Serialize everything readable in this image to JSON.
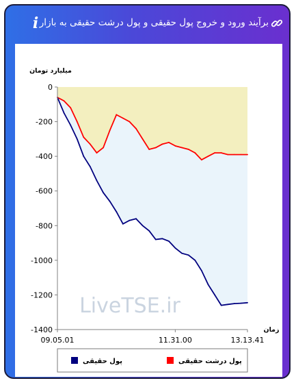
{
  "header": {
    "title": "برآیند ورود و خروج پول حقیقی و پول درشت حقیقی به بازار",
    "link_icon": "link-icon",
    "info_icon": "info-icon",
    "info_glyph": "i"
  },
  "watermark": "LiveTSE.ir",
  "chart_data": {
    "type": "area",
    "ylabel": "میلیارد تومان",
    "xlabel": "زمان",
    "ylim": [
      -1400,
      0
    ],
    "yticks": [
      0,
      -200,
      -400,
      -600,
      -800,
      -1000,
      -1200,
      -1400
    ],
    "x_tick_labels": [
      "09.05.01",
      "11.31.00",
      "13.13.41"
    ],
    "grid": false,
    "legend_position": "bottom",
    "colors": {
      "series_1_line": "#00007f",
      "series_1_fill": "#eaf4fb",
      "series_2_line": "#ff0000",
      "series_2_fill": "#f3efbf"
    },
    "series": [
      {
        "name": "پول حقیقی",
        "values": [
          -60,
          -150,
          -220,
          -300,
          -400,
          -460,
          -540,
          -610,
          -660,
          -720,
          -790,
          -770,
          -760,
          -800,
          -830,
          -880,
          -875,
          -890,
          -930,
          -960,
          -970,
          -1000,
          -1060,
          -1140,
          -1200,
          -1260,
          -1255,
          -1250,
          -1248,
          -1245
        ]
      },
      {
        "name": "پول درشت حقیقی",
        "values": [
          -60,
          -80,
          -120,
          -200,
          -290,
          -330,
          -380,
          -350,
          -250,
          -160,
          -180,
          -200,
          -240,
          -300,
          -360,
          -350,
          -330,
          -320,
          -340,
          -350,
          -360,
          -380,
          -420,
          -400,
          -380,
          -380,
          -390,
          -390,
          -390,
          -390
        ]
      }
    ]
  }
}
